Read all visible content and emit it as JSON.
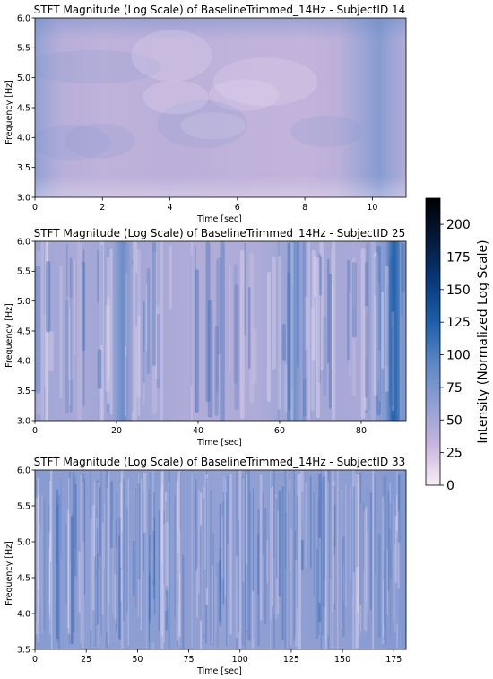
{
  "chart_data": [
    {
      "type": "heatmap",
      "title": "STFT Magnitude (Log Scale) of BaselineTrimmed_14Hz - SubjectID 14",
      "xlabel": "Time [sec]",
      "ylabel": "Frequency [Hz]",
      "xlim": [
        0,
        11.0
      ],
      "ylim": [
        3.0,
        6.0
      ],
      "xticks": [
        0,
        2,
        4,
        6,
        8,
        10
      ],
      "yticks": [
        3.0,
        3.5,
        4.0,
        4.5,
        5.0,
        5.5,
        6.0
      ],
      "texture": "smooth",
      "intensity_profile": {
        "x": [
          0,
          0.3,
          0.8,
          2,
          4,
          6,
          8,
          9,
          9.6,
          10.2,
          10.6,
          11.0
        ],
        "values": [
          62,
          52,
          40,
          36,
          38,
          36,
          34,
          38,
          52,
          68,
          55,
          45
        ]
      }
    },
    {
      "type": "heatmap",
      "title": "STFT Magnitude (Log Scale) of BaselineTrimmed_14Hz - SubjectID 25",
      "xlabel": "Time [sec]",
      "ylabel": "Frequency [Hz]",
      "xlim": [
        0,
        91.0
      ],
      "ylim": [
        3.0,
        6.0
      ],
      "xticks": [
        0,
        20,
        40,
        60,
        80
      ],
      "yticks": [
        3.0,
        3.5,
        4.0,
        4.5,
        5.0,
        5.5,
        6.0
      ],
      "texture": "streaky",
      "intensity_profile": {
        "x": [
          0,
          3,
          10,
          19,
          21.5,
          24,
          40,
          55,
          62,
          63.5,
          66,
          80,
          86,
          88,
          90,
          91.0
        ],
        "values": [
          58,
          52,
          48,
          55,
          85,
          52,
          44,
          46,
          55,
          82,
          52,
          48,
          70,
          125,
          85,
          60
        ]
      }
    },
    {
      "type": "heatmap",
      "title": "STFT Magnitude (Log Scale) of BaselineTrimmed_14Hz - SubjectID 33",
      "xlabel": "Time [sec]",
      "ylabel": "Frequency [Hz]",
      "xlim": [
        0,
        181.0
      ],
      "ylim": [
        3.5,
        6.0
      ],
      "xticks": [
        0,
        25,
        50,
        75,
        100,
        125,
        150,
        175
      ],
      "yticks": [
        3.5,
        4.0,
        4.5,
        5.0,
        5.5,
        6.0
      ],
      "texture": "dense",
      "intensity_profile": {
        "x": [
          0,
          30,
          60,
          90,
          120,
          150,
          181.0
        ],
        "values": [
          68,
          62,
          66,
          60,
          64,
          63,
          70
        ]
      }
    }
  ],
  "colorbar": {
    "label": "Intensity (Normalized Log Scale)",
    "range": [
      0,
      220
    ],
    "ticks": [
      0,
      25,
      50,
      75,
      100,
      125,
      150,
      175,
      200
    ],
    "colormap": [
      "#f7eef5",
      "#c7b5dc",
      "#8f9fd3",
      "#5b86c4",
      "#1d5ea8",
      "#083879",
      "#041a3a",
      "#000000"
    ]
  }
}
